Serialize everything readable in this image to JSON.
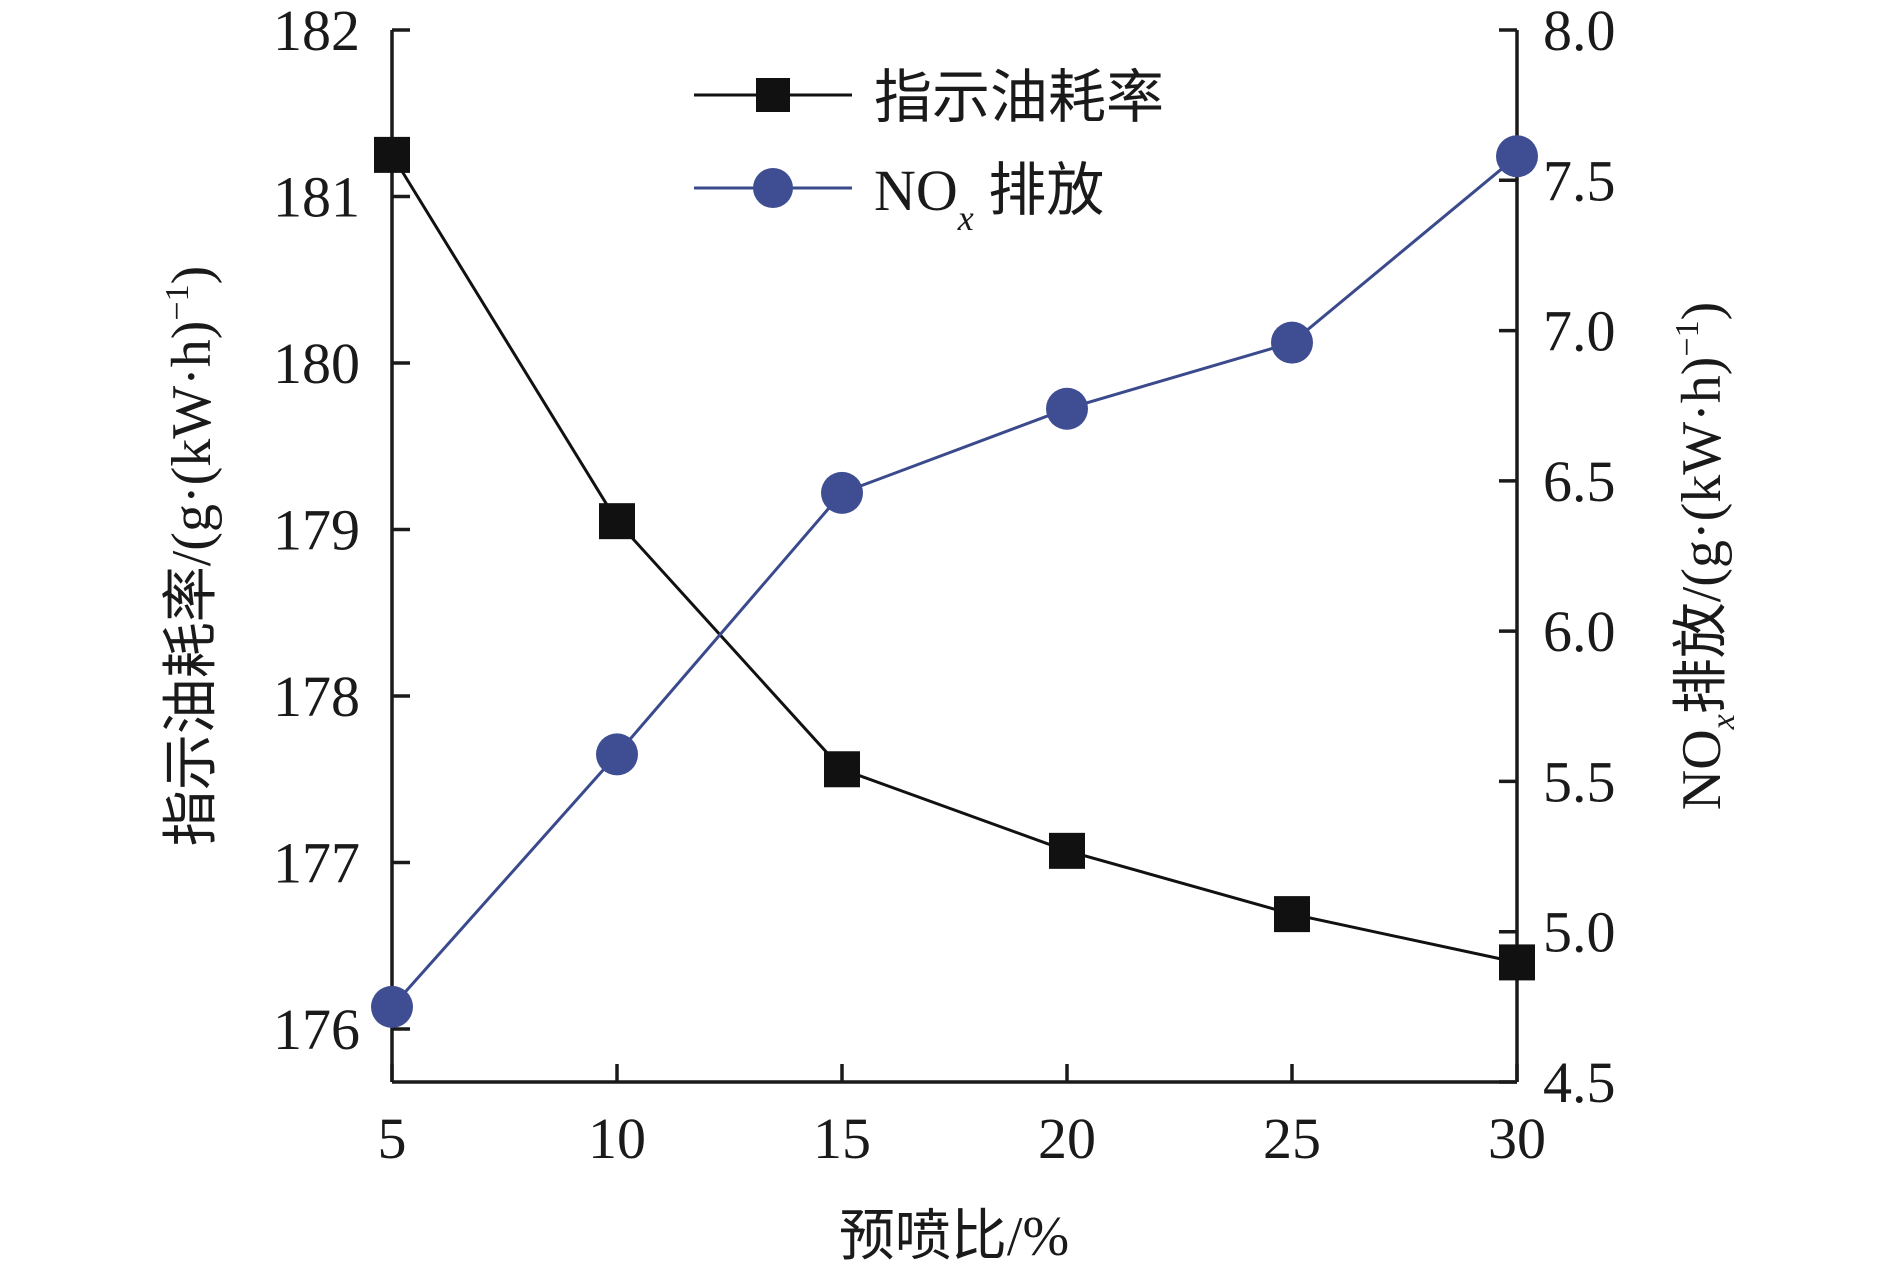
{
  "chart_data": {
    "type": "line",
    "xlabel": "预喷比/%",
    "x": [
      5,
      10,
      15,
      20,
      25,
      30
    ],
    "xlim": [
      5,
      30
    ],
    "xticks": [
      5,
      10,
      15,
      20,
      25,
      30
    ],
    "ylabel_left": {
      "prefix": "指示油耗率/(g·(kW·h)",
      "superscript": "−1",
      "suffix": ")"
    },
    "ylabel_right": {
      "prefix": "NO",
      "subscript": "x",
      "middle": "排放/(g·(kW·h)",
      "superscript": "−1",
      "suffix": ")"
    },
    "ylim_left": [
      175.6,
      182
    ],
    "yticks_left": [
      "176",
      "177",
      "178",
      "179",
      "180",
      "181",
      "182"
    ],
    "ylim_right": [
      4.5,
      8.0
    ],
    "yticks_right": [
      "4.5",
      "5.0",
      "5.5",
      "6.0",
      "6.5",
      "7.0",
      "7.5",
      "8.0"
    ],
    "grid": false,
    "legend_position": "top-center",
    "series": [
      {
        "name": "指示油耗率",
        "axis": "left",
        "marker": "square",
        "color": "#111111",
        "values": [
          181.25,
          179.05,
          177.56,
          177.07,
          176.69,
          176.4
        ]
      },
      {
        "name_main": "NO",
        "name_sub": "x",
        "name_rest": " 排放",
        "axis": "right",
        "marker": "circle",
        "color": "#3a4a8c",
        "marker_color": "#3f4d93",
        "values": [
          4.75,
          5.59,
          6.46,
          6.74,
          6.96,
          7.58
        ]
      }
    ]
  }
}
